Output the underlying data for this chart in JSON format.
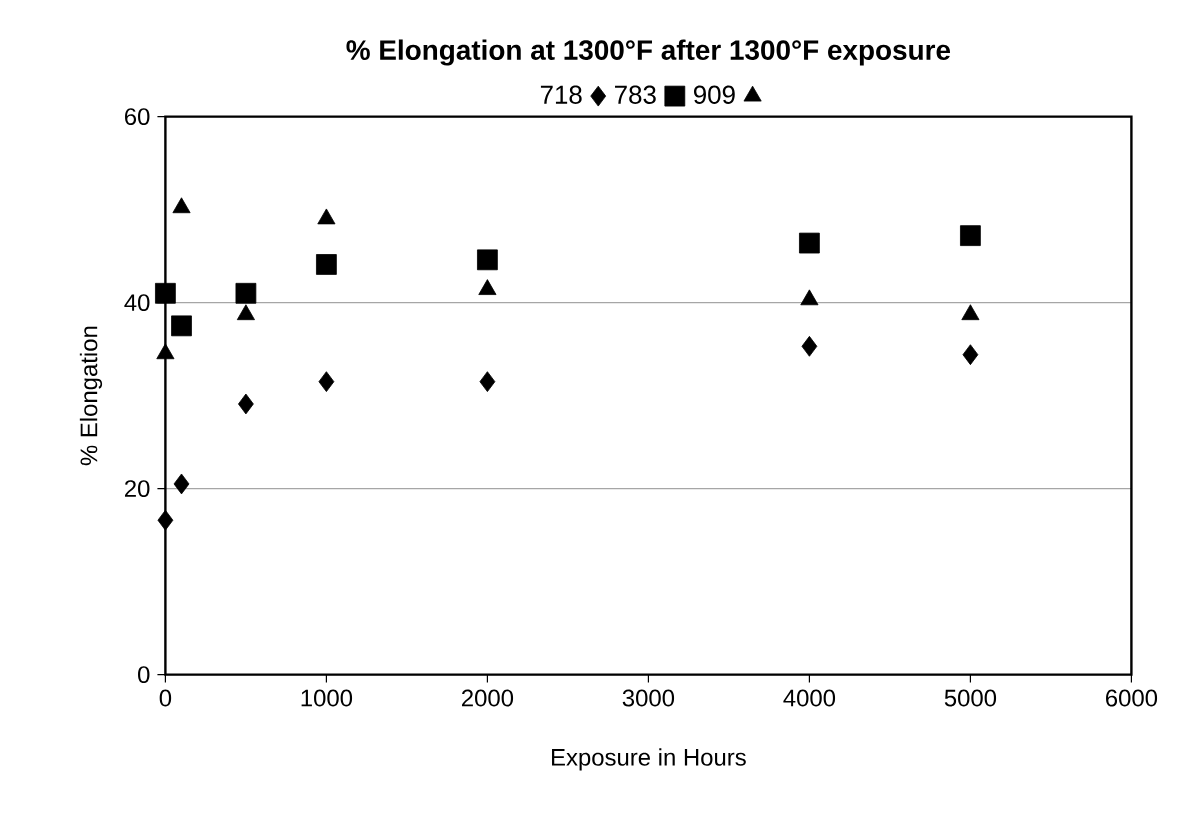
{
  "chart_data": {
    "type": "scatter",
    "title": "% Elongation at 1300°F after 1300°F exposure",
    "xlabel": "Exposure in Hours",
    "ylabel": "% Elongation",
    "xlim": [
      0,
      6000
    ],
    "xticks": [
      0,
      1000,
      2000,
      3000,
      4000,
      5000,
      6000
    ],
    "ylim": [
      0,
      60
    ],
    "yticks": [
      0,
      20,
      40,
      60
    ],
    "grid": "y",
    "legend": "top",
    "series": [
      {
        "name": "718",
        "color": "#000000",
        "marker": "diamond",
        "x": [
          0,
          100,
          500,
          1000,
          2000,
          4000,
          5000
        ],
        "values": [
          16.6,
          20.5,
          29.1,
          31.5,
          31.5,
          35.3,
          34.4
        ]
      },
      {
        "name": "783",
        "color": "#000000",
        "marker": "square",
        "x": [
          0,
          100,
          500,
          1000,
          2000,
          4000,
          5000
        ],
        "values": [
          41,
          37.5,
          41,
          44.1,
          44.6,
          46.4,
          47.2
        ]
      },
      {
        "name": "909",
        "color": "#000000",
        "marker": "triangle",
        "x": [
          0,
          100,
          500,
          1000,
          2000,
          4000,
          5000
        ],
        "values": [
          34.5,
          50.2,
          38.7,
          49,
          41.4,
          40.3,
          38.7
        ]
      }
    ]
  }
}
